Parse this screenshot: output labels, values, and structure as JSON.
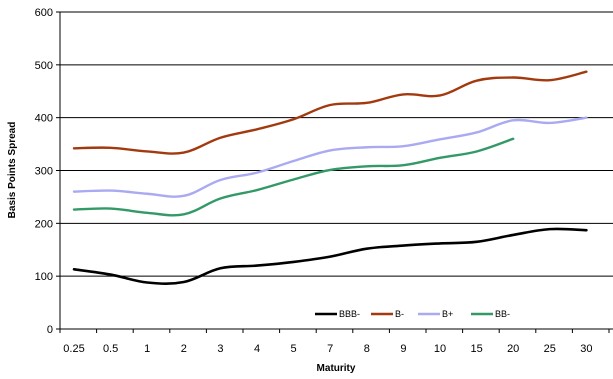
{
  "chart_data": {
    "type": "line",
    "categories": [
      "0.25",
      "0.5",
      "1",
      "2",
      "3",
      "4",
      "5",
      "7",
      "8",
      "9",
      "10",
      "15",
      "20",
      "25",
      "30"
    ],
    "xlabel": "Maturity",
    "ylabel": "Basis Points Spread",
    "ylim": [
      0,
      600
    ],
    "yticks": [
      "0",
      "100",
      "200",
      "300",
      "400",
      "500",
      "600"
    ],
    "grid": "horizontal",
    "legend_position": "bottom-inside",
    "series": [
      {
        "name": "BBB-",
        "color": "#000000",
        "values": [
          113,
          103,
          88,
          89,
          115,
          120,
          127,
          137,
          152,
          158,
          162,
          165,
          178,
          189,
          187
        ]
      },
      {
        "name": "B-",
        "color": "#a33a0f",
        "values": [
          342,
          343,
          336,
          334,
          362,
          378,
          397,
          424,
          428,
          444,
          442,
          470,
          476,
          471,
          487
        ]
      },
      {
        "name": "B+",
        "color": "#aaaaf2",
        "values": [
          260,
          262,
          256,
          252,
          282,
          296,
          318,
          338,
          344,
          346,
          359,
          372,
          395,
          390,
          400
        ]
      },
      {
        "name": "BB-",
        "color": "#339966",
        "values": [
          226,
          228,
          220,
          217,
          247,
          263,
          283,
          301,
          308,
          310,
          324,
          336,
          360,
          null,
          null
        ]
      }
    ]
  }
}
